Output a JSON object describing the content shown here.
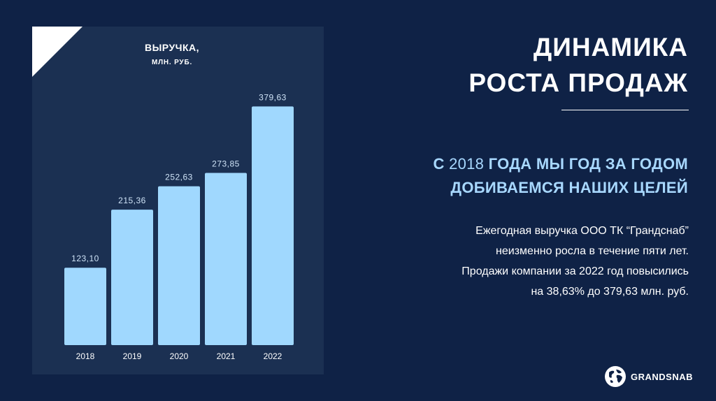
{
  "chart_data": {
    "type": "bar",
    "title": "ВЫРУЧКА,",
    "unit": "МЛН. РУБ.",
    "categories": [
      "2018",
      "2019",
      "2020",
      "2021",
      "2022"
    ],
    "values": [
      123.1,
      215.36,
      252.63,
      273.85,
      379.63
    ],
    "value_labels": [
      "123,10",
      "215,36",
      "252,63",
      "273,85",
      "379,63"
    ],
    "ylim": [
      0,
      400
    ],
    "grid": false,
    "legend": "none",
    "bar_color": "#a0d8fe",
    "panel_color": "#1b3052"
  },
  "headline": {
    "line1": "ДИНАМИКА",
    "line2": "РОСТА ПРОДАЖ"
  },
  "subheadline": {
    "prefix": "С ",
    "year": "2018",
    "rest_line1": " ГОДА МЫ ГОД ЗА ГОДОМ",
    "line2": "ДОБИВАЕМСЯ НАШИХ ЦЕЛЕЙ"
  },
  "description": {
    "line1": "Ежегодная выручка ООО ТК “Грандснаб”",
    "line2": "неизменно росла в течение пяти лет.",
    "line3": "Продажи компании за 2022 год повысились",
    "line4": "на 38,63% до 379,63 млн. руб."
  },
  "brand": {
    "name": "GRANDSNAB",
    "icon": "globe-icon"
  },
  "colors": {
    "background": "#0f2246",
    "accent": "#a8d8ff"
  }
}
